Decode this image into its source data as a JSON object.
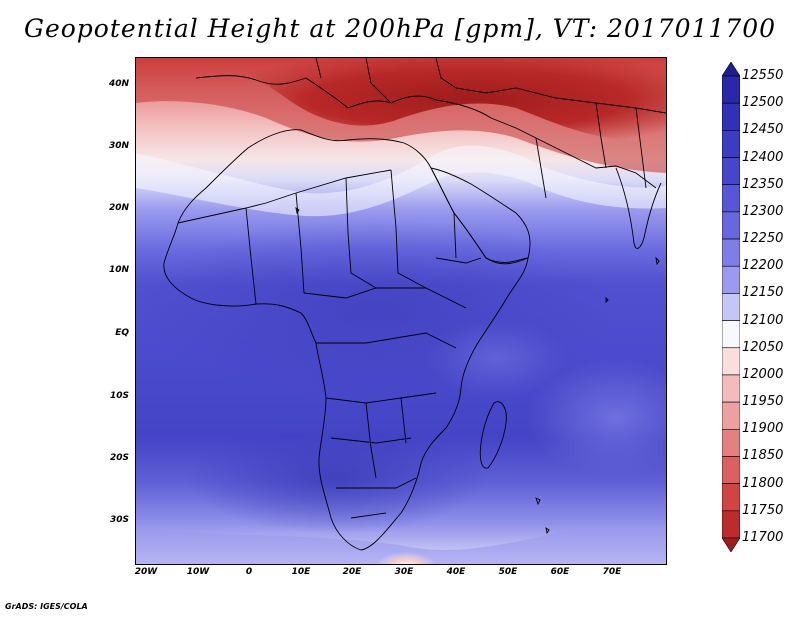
{
  "title": "Geopotential Height at 200hPa [gpm], VT: 2017011700",
  "credit": "GrADS: IGES/COLA",
  "lat_labels": [
    "40N",
    "30N",
    "20N",
    "10N",
    "EQ",
    "10S",
    "20S",
    "30S"
  ],
  "lon_labels": [
    "20W",
    "10W",
    "0",
    "10E",
    "20E",
    "30E",
    "40E",
    "50E",
    "60E",
    "70E"
  ],
  "colorbar": {
    "levels": [
      "12550",
      "12500",
      "12450",
      "12400",
      "12350",
      "12300",
      "12250",
      "12200",
      "12150",
      "12100",
      "12050",
      "12000",
      "11950",
      "11900",
      "11850",
      "11800",
      "11750",
      "11700"
    ],
    "colors": [
      "#1e1e90",
      "#2828a8",
      "#3030b8",
      "#3b3bc4",
      "#4646cc",
      "#5656d6",
      "#6868de",
      "#7e7ee6",
      "#9a9aee",
      "#c6c6f6",
      "#f8f8ff",
      "#f8dede",
      "#f2bcbc",
      "#eca0a0",
      "#e48080",
      "#dc6060",
      "#d04444",
      "#bc2c2c",
      "#a01c1c"
    ]
  },
  "map": {
    "region": "Africa and surroundings",
    "lon_range": [
      -22,
      80
    ],
    "lat_range": [
      -37,
      45
    ]
  }
}
